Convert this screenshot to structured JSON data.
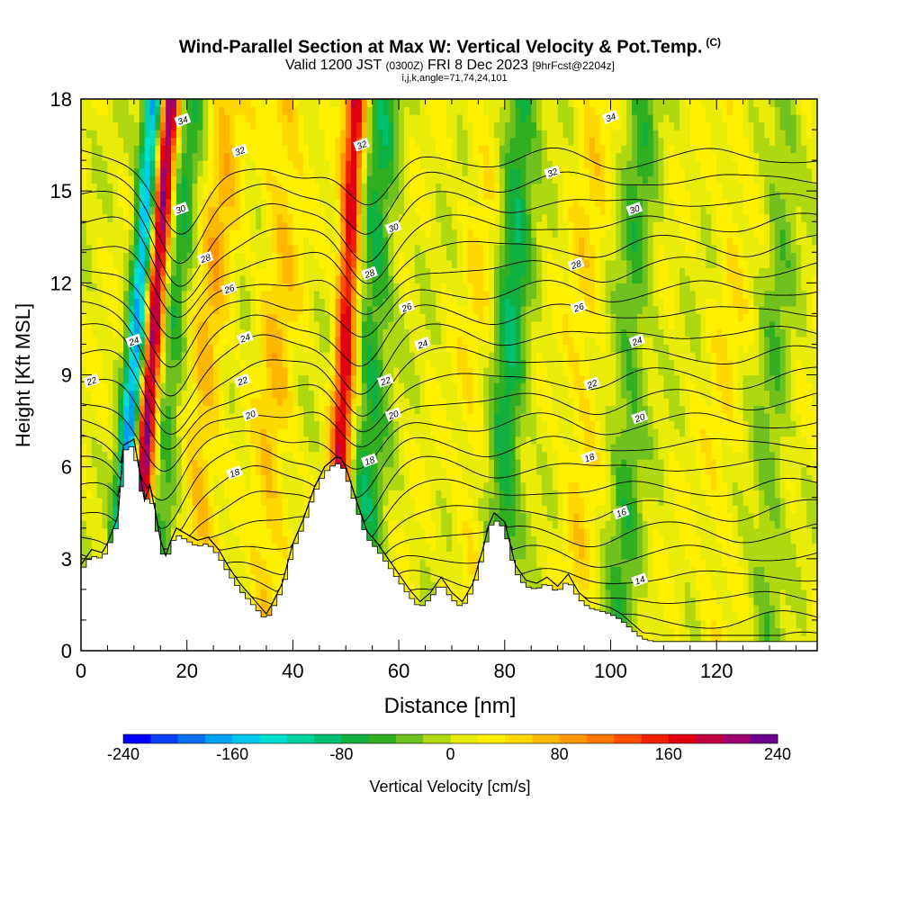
{
  "chart_data": {
    "type": "heatmap",
    "title": "Wind-Parallel Section at Max W: Vertical Velocity & Pot.Temp.",
    "title_mark": "(C)",
    "subtitle_main": "Valid 1200 JST",
    "subtitle_utc": "(0300Z)",
    "subtitle_date": "FRI 8 Dec 2023",
    "subtitle_fcst": "[9hrFcst@2204z]",
    "subtitle_index": "i,j,k,angle=71,74,24,101",
    "xlabel": "Distance [nm]",
    "ylabel": "Height [Kft MSL]",
    "xlim": [
      0,
      139
    ],
    "ylim": [
      0,
      18
    ],
    "x_ticks": [
      "0",
      "20",
      "40",
      "60",
      "80",
      "100",
      "120"
    ],
    "y_ticks": [
      "0",
      "3",
      "6",
      "9",
      "12",
      "15",
      "18"
    ],
    "colorbar": {
      "label": "Vertical Velocity [cm/s]",
      "min": -240,
      "max": 240,
      "step": 20,
      "tick_labels": [
        "-240",
        "-160",
        "-80",
        "0",
        "80",
        "160",
        "240"
      ],
      "colors": [
        "#0000ff",
        "#0a3ff5",
        "#0a70f0",
        "#00a0f0",
        "#00c8f0",
        "#00e0d0",
        "#00d2a0",
        "#00c070",
        "#10b040",
        "#30b020",
        "#70c020",
        "#b0d810",
        "#e8ec08",
        "#fff000",
        "#ffd800",
        "#ffb800",
        "#ff9800",
        "#ff7800",
        "#ff5000",
        "#f02000",
        "#e00010",
        "#c00040",
        "#a00070",
        "#700090"
      ]
    },
    "updrafts": [
      {
        "x": 13.5,
        "strength": 240
      },
      {
        "x": 50,
        "strength": 170
      },
      {
        "x": 24,
        "strength": 55
      },
      {
        "x": 37,
        "strength": 45
      },
      {
        "x": 75,
        "strength": 25
      },
      {
        "x": 95,
        "strength": 30
      },
      {
        "x": 122,
        "strength": 20
      }
    ],
    "downdrafts": [
      {
        "x": 10.5,
        "strength": -190
      },
      {
        "x": 17,
        "strength": -70
      },
      {
        "x": 55,
        "strength": -75
      },
      {
        "x": 81,
        "strength": -85
      },
      {
        "x": 104,
        "strength": -55
      },
      {
        "x": 131,
        "strength": -40
      }
    ],
    "terrain": [
      [
        0,
        2.6
      ],
      [
        2,
        3.1
      ],
      [
        4,
        3.0
      ],
      [
        5,
        3.3
      ],
      [
        7,
        4.2
      ],
      [
        8,
        6.5
      ],
      [
        10,
        6.7
      ],
      [
        12,
        4.7
      ],
      [
        13,
        5.2
      ],
      [
        14,
        4.4
      ],
      [
        15,
        3.4
      ],
      [
        16,
        2.9
      ],
      [
        17,
        3.4
      ],
      [
        18,
        3.8
      ],
      [
        20,
        3.6
      ],
      [
        22,
        3.4
      ],
      [
        24,
        3.5
      ],
      [
        26,
        3.1
      ],
      [
        28,
        2.5
      ],
      [
        30,
        2.0
      ],
      [
        32,
        1.6
      ],
      [
        34,
        1.2
      ],
      [
        35,
        1.0
      ],
      [
        36,
        1.3
      ],
      [
        38,
        2.0
      ],
      [
        40,
        3.3
      ],
      [
        42,
        4.1
      ],
      [
        44,
        5.1
      ],
      [
        46,
        5.8
      ],
      [
        48,
        6.1
      ],
      [
        49,
        6.1
      ],
      [
        50,
        5.8
      ],
      [
        52,
        4.7
      ],
      [
        54,
        3.7
      ],
      [
        56,
        3.3
      ],
      [
        58,
        2.8
      ],
      [
        60,
        2.3
      ],
      [
        62,
        1.8
      ],
      [
        64,
        1.4
      ],
      [
        66,
        1.7
      ],
      [
        68,
        2.2
      ],
      [
        70,
        1.7
      ],
      [
        72,
        1.4
      ],
      [
        74,
        2.0
      ],
      [
        76,
        3.2
      ],
      [
        77,
        3.9
      ],
      [
        78,
        4.3
      ],
      [
        80,
        4.0
      ],
      [
        82,
        2.6
      ],
      [
        84,
        2.1
      ],
      [
        86,
        2.0
      ],
      [
        88,
        2.2
      ],
      [
        90,
        1.9
      ],
      [
        92,
        2.3
      ],
      [
        94,
        1.7
      ],
      [
        96,
        1.4
      ],
      [
        98,
        1.3
      ],
      [
        100,
        1.2
      ],
      [
        102,
        1.0
      ],
      [
        104,
        0.7
      ],
      [
        106,
        0.4
      ],
      [
        108,
        0.3
      ],
      [
        139,
        0.3
      ]
    ],
    "theta_levels": [
      12,
      13,
      14,
      15,
      16,
      17,
      18,
      19,
      20,
      21,
      22,
      23,
      24,
      25,
      26,
      27,
      28,
      29,
      30,
      31,
      32,
      33,
      34
    ],
    "theta_labels": [
      {
        "text": "34",
        "x": 19.2,
        "y": 17.3
      },
      {
        "text": "32",
        "x": 30.0,
        "y": 16.3
      },
      {
        "text": "30",
        "x": 18.8,
        "y": 14.4
      },
      {
        "text": "28",
        "x": 23.5,
        "y": 12.8
      },
      {
        "text": "26",
        "x": 28.0,
        "y": 11.8
      },
      {
        "text": "24",
        "x": 10.0,
        "y": 10.1
      },
      {
        "text": "24",
        "x": 31.0,
        "y": 10.2
      },
      {
        "text": "22",
        "x": 2.0,
        "y": 8.8
      },
      {
        "text": "22",
        "x": 30.5,
        "y": 8.8
      },
      {
        "text": "20",
        "x": 32.0,
        "y": 7.7
      },
      {
        "text": "18",
        "x": 29.0,
        "y": 5.8
      },
      {
        "text": "32",
        "x": 53.0,
        "y": 16.5
      },
      {
        "text": "30",
        "x": 59.0,
        "y": 13.8
      },
      {
        "text": "28",
        "x": 54.5,
        "y": 12.3
      },
      {
        "text": "26",
        "x": 61.5,
        "y": 11.2
      },
      {
        "text": "24",
        "x": 64.5,
        "y": 10.0
      },
      {
        "text": "22",
        "x": 57.5,
        "y": 8.8
      },
      {
        "text": "20",
        "x": 59.0,
        "y": 7.7
      },
      {
        "text": "18",
        "x": 54.5,
        "y": 6.2
      },
      {
        "text": "34",
        "x": 100.0,
        "y": 17.4
      },
      {
        "text": "32",
        "x": 89.0,
        "y": 15.6
      },
      {
        "text": "30",
        "x": 104.5,
        "y": 14.4
      },
      {
        "text": "28",
        "x": 93.5,
        "y": 12.6
      },
      {
        "text": "26",
        "x": 94.0,
        "y": 11.2
      },
      {
        "text": "24",
        "x": 105.0,
        "y": 10.1
      },
      {
        "text": "22",
        "x": 96.5,
        "y": 8.7
      },
      {
        "text": "20",
        "x": 105.5,
        "y": 7.6
      },
      {
        "text": "18",
        "x": 96.0,
        "y": 6.3
      },
      {
        "text": "16",
        "x": 102.0,
        "y": 4.5
      },
      {
        "text": "14",
        "x": 105.5,
        "y": 2.3
      }
    ]
  }
}
